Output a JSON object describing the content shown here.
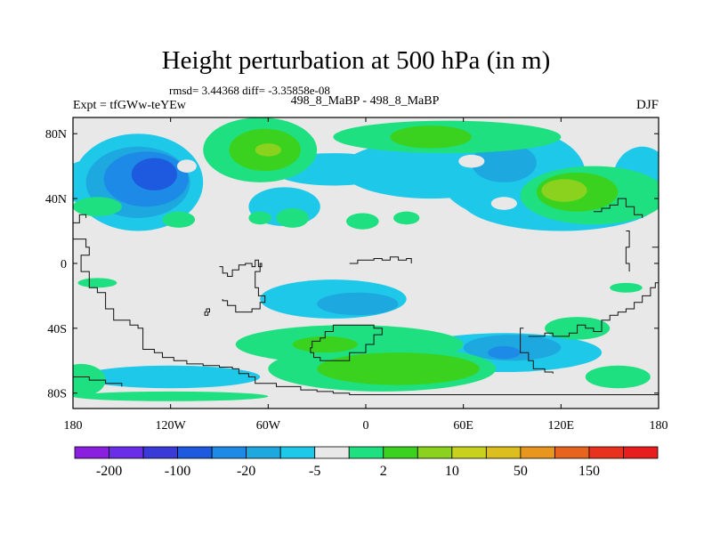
{
  "header": {
    "title": "Height perturbation at 500 hPa (in m)",
    "stats": "rmsd= 3.44368 diff= -3.35858e-08",
    "left_label": "Expt = tfGWw-teYEw",
    "center_label": "498_8_MaBP - 498_8_MaBP",
    "right_label": "DJF"
  },
  "axes": {
    "lon_ticks": [
      {
        "lon": -180,
        "label": "180"
      },
      {
        "lon": -120,
        "label": "120W"
      },
      {
        "lon": -60,
        "label": "60W"
      },
      {
        "lon": 0,
        "label": "0"
      },
      {
        "lon": 60,
        "label": "60E"
      },
      {
        "lon": 120,
        "label": "120E"
      },
      {
        "lon": 180,
        "label": "180"
      }
    ],
    "lat_ticks": [
      {
        "lat": 80,
        "label": "80N"
      },
      {
        "lat": 40,
        "label": "40N"
      },
      {
        "lat": 0,
        "label": "0"
      },
      {
        "lat": -40,
        "label": "40S"
      },
      {
        "lat": -80,
        "label": "80S"
      }
    ]
  },
  "colorbar": {
    "colors": [
      "#8a1fe0",
      "#6a2ee8",
      "#3a3ad8",
      "#1e5ae0",
      "#1e8ae8",
      "#1ea8e0",
      "#1ec8e8",
      "#e8e8e8",
      "#1ee080",
      "#3ad21e",
      "#8ad21e",
      "#c8d21e",
      "#dcbe1e",
      "#e8961e",
      "#e8641e",
      "#e8321e",
      "#e81e1e"
    ],
    "labels": [
      {
        "after_box": 1,
        "text": "-200"
      },
      {
        "after_box": 3,
        "text": "-100"
      },
      {
        "after_box": 5,
        "text": "-20"
      },
      {
        "after_box": 7,
        "text": "-5"
      },
      {
        "after_box": 9,
        "text": "2"
      },
      {
        "after_box": 11,
        "text": "10"
      },
      {
        "after_box": 13,
        "text": "50"
      },
      {
        "after_box": 15,
        "text": "150"
      }
    ]
  },
  "map": {
    "background": "#e8e8e8",
    "zones": [
      {
        "level": "-5",
        "color": "#1ec8e8",
        "shapes": [
          {
            "lon": -162,
            "lat": 50,
            "rx": 28,
            "ry": 15
          },
          {
            "lon": -140,
            "lat": 50,
            "rx": 40,
            "ry": 30
          },
          {
            "lon": -50,
            "lat": 35,
            "rx": 22,
            "ry": 12
          },
          {
            "lon": -20,
            "lat": 58,
            "rx": 38,
            "ry": 10
          },
          {
            "lon": 40,
            "lat": 58,
            "rx": 55,
            "ry": 18
          },
          {
            "lon": 90,
            "lat": 55,
            "rx": 45,
            "ry": 28
          },
          {
            "lon": 120,
            "lat": 40,
            "rx": 62,
            "ry": 20
          },
          {
            "lon": 170,
            "lat": 52,
            "rx": 18,
            "ry": 20
          },
          {
            "lon": -20,
            "lat": -22,
            "rx": 45,
            "ry": 12
          },
          {
            "lon": 85,
            "lat": -55,
            "rx": 60,
            "ry": 12
          },
          {
            "lon": -120,
            "lat": -70,
            "rx": 55,
            "ry": 7
          },
          {
            "lon": 40,
            "lat": -70,
            "rx": 15,
            "ry": 7
          }
        ]
      },
      {
        "level": "-20",
        "color": "#1ea8e0",
        "shapes": [
          {
            "lon": -140,
            "lat": 50,
            "rx": 32,
            "ry": 22
          },
          {
            "lon": 85,
            "lat": 62,
            "rx": 20,
            "ry": 12
          },
          {
            "lon": 90,
            "lat": -52,
            "rx": 30,
            "ry": 8
          },
          {
            "lon": -5,
            "lat": -25,
            "rx": 25,
            "ry": 7
          }
        ]
      },
      {
        "level": "-100",
        "color": "#1e8ae8",
        "shapes": [
          {
            "lon": -135,
            "lat": 52,
            "rx": 26,
            "ry": 17
          },
          {
            "lon": 85,
            "lat": -55,
            "rx": 10,
            "ry": 4
          }
        ]
      },
      {
        "level": "-200",
        "color": "#1e5ae0",
        "shapes": [
          {
            "lon": -130,
            "lat": 55,
            "rx": 14,
            "ry": 10
          }
        ]
      },
      {
        "level": "2",
        "color": "#1ee080",
        "shapes": [
          {
            "lon": -65,
            "lat": 70,
            "rx": 35,
            "ry": 20
          },
          {
            "lon": 50,
            "lat": 78,
            "rx": 70,
            "ry": 10
          },
          {
            "lon": 140,
            "lat": 42,
            "rx": 45,
            "ry": 18
          },
          {
            "lon": -165,
            "lat": 35,
            "rx": 15,
            "ry": 6
          },
          {
            "lon": -115,
            "lat": 27,
            "rx": 10,
            "ry": 5
          },
          {
            "lon": -65,
            "lat": 28,
            "rx": 7,
            "ry": 4
          },
          {
            "lon": -45,
            "lat": 28,
            "rx": 10,
            "ry": 6
          },
          {
            "lon": -2,
            "lat": 26,
            "rx": 10,
            "ry": 5
          },
          {
            "lon": 25,
            "lat": 28,
            "rx": 8,
            "ry": 4
          },
          {
            "lon": -10,
            "lat": -50,
            "rx": 70,
            "ry": 12
          },
          {
            "lon": 10,
            "lat": -65,
            "rx": 70,
            "ry": 14
          },
          {
            "lon": 130,
            "lat": -40,
            "rx": 20,
            "ry": 7
          },
          {
            "lon": -175,
            "lat": -72,
            "rx": 15,
            "ry": 10
          },
          {
            "lon": -120,
            "lat": -82,
            "rx": 60,
            "ry": 3
          },
          {
            "lon": 155,
            "lat": -70,
            "rx": 20,
            "ry": 7
          },
          {
            "lon": -165,
            "lat": -12,
            "rx": 12,
            "ry": 3
          },
          {
            "lon": 160,
            "lat": -15,
            "rx": 10,
            "ry": 3
          }
        ]
      },
      {
        "level": "10",
        "color": "#3ad21e",
        "shapes": [
          {
            "lon": -62,
            "lat": 70,
            "rx": 22,
            "ry": 13
          },
          {
            "lon": 40,
            "lat": 78,
            "rx": 25,
            "ry": 7
          },
          {
            "lon": 130,
            "lat": 44,
            "rx": 25,
            "ry": 12
          },
          {
            "lon": 20,
            "lat": -65,
            "rx": 50,
            "ry": 10
          },
          {
            "lon": -25,
            "lat": -50,
            "rx": 20,
            "ry": 5
          }
        ]
      },
      {
        "level": "50",
        "color": "#8ad21e",
        "shapes": [
          {
            "lon": -60,
            "lat": 70,
            "rx": 8,
            "ry": 4
          },
          {
            "lon": 122,
            "lat": 45,
            "rx": 14,
            "ry": 7
          }
        ]
      }
    ],
    "holes": [
      {
        "lon": 65,
        "lat": 63,
        "rx": 8,
        "ry": 4
      },
      {
        "lon": 85,
        "lat": 37,
        "rx": 8,
        "ry": 4
      },
      {
        "lon": -110,
        "lat": 60,
        "rx": 6,
        "ry": 4
      }
    ],
    "coastlines": [
      [
        [
          -180,
          15
        ],
        [
          -172,
          10
        ],
        [
          -170,
          5
        ],
        [
          -175,
          -5
        ],
        [
          -170,
          -15
        ],
        [
          -165,
          -18
        ],
        [
          -160,
          -28
        ],
        [
          -155,
          -35
        ],
        [
          -145,
          -38
        ],
        [
          -140,
          -40
        ],
        [
          -137,
          -40
        ],
        [
          -137,
          -53
        ],
        [
          -130,
          -55
        ],
        [
          -125,
          -58
        ],
        [
          -118,
          -60
        ],
        [
          -110,
          -62
        ],
        [
          -100,
          -63
        ],
        [
          -90,
          -64
        ],
        [
          -82,
          -65
        ],
        [
          -78,
          -68
        ],
        [
          -72,
          -70
        ],
        [
          -68,
          -74
        ],
        [
          -55,
          -76
        ],
        [
          -45,
          -76
        ],
        [
          -40,
          -78
        ],
        [
          -30,
          -79
        ],
        [
          -20,
          -80
        ],
        [
          -10,
          -81
        ],
        [
          0,
          -81
        ],
        [
          20,
          -81
        ],
        [
          40,
          -81
        ],
        [
          60,
          -81
        ],
        [
          80,
          -81
        ],
        [
          100,
          -81
        ],
        [
          120,
          -81
        ],
        [
          140,
          -81
        ],
        [
          160,
          -81
        ],
        [
          180,
          -81
        ]
      ],
      [
        [
          -90,
          -2
        ],
        [
          -88,
          -6
        ],
        [
          -85,
          -8
        ],
        [
          -82,
          -4
        ],
        [
          -78,
          -1
        ],
        [
          -74,
          0
        ],
        [
          -70,
          -2
        ],
        [
          -68,
          2
        ],
        [
          -66,
          -2
        ],
        [
          -64,
          0
        ],
        [
          -65,
          -5
        ],
        [
          -68,
          -15
        ],
        [
          -66,
          -20
        ],
        [
          -62,
          -24
        ],
        [
          -65,
          -28
        ],
        [
          -70,
          -30
        ],
        [
          -75,
          -30
        ],
        [
          -80,
          -26
        ],
        [
          -85,
          -23
        ],
        [
          -88,
          -22
        ]
      ],
      [
        [
          -10,
          0
        ],
        [
          -5,
          2
        ],
        [
          5,
          3
        ],
        [
          10,
          2
        ],
        [
          15,
          4
        ],
        [
          20,
          2
        ],
        [
          25,
          3
        ],
        [
          28,
          0
        ]
      ],
      [
        [
          -20,
          -38
        ],
        [
          -10,
          -38
        ],
        [
          5,
          -40
        ],
        [
          10,
          -44
        ],
        [
          5,
          -50
        ],
        [
          0,
          -55
        ],
        [
          -10,
          -60
        ],
        [
          -18,
          -60
        ],
        [
          -28,
          -58
        ],
        [
          -32,
          -55
        ],
        [
          -34,
          -52
        ],
        [
          -33,
          -48
        ],
        [
          -28,
          -46
        ],
        [
          -25,
          -42
        ],
        [
          -20,
          -38
        ]
      ],
      [
        [
          100,
          -45
        ],
        [
          110,
          -43
        ],
        [
          115,
          -45
        ],
        [
          125,
          -43
        ],
        [
          130,
          -38
        ],
        [
          135,
          -40
        ],
        [
          140,
          -42
        ],
        [
          145,
          -35
        ],
        [
          150,
          -32
        ],
        [
          155,
          -30
        ],
        [
          160,
          -28
        ],
        [
          165,
          -24
        ],
        [
          170,
          -20
        ],
        [
          175,
          -15
        ],
        [
          178,
          -12
        ],
        [
          180,
          -12
        ]
      ],
      [
        [
          97,
          -40
        ],
        [
          95,
          -55
        ],
        [
          100,
          -60
        ],
        [
          103,
          -65
        ],
        [
          110,
          -67
        ],
        [
          115,
          -68
        ]
      ],
      [
        [
          140,
          32
        ],
        [
          145,
          34
        ],
        [
          150,
          36
        ],
        [
          155,
          40
        ],
        [
          160,
          35
        ],
        [
          165,
          30
        ],
        [
          170,
          28
        ]
      ],
      [
        [
          160,
          20
        ],
        [
          162,
          10
        ],
        [
          160,
          0
        ],
        [
          162,
          -5
        ]
      ],
      [
        [
          176,
          10
        ],
        [
          180,
          15
        ]
      ],
      [
        [
          -180,
          25
        ],
        [
          -176,
          30
        ],
        [
          -172,
          28
        ]
      ],
      [
        [
          -180,
          -70
        ],
        [
          -170,
          -72
        ],
        [
          -160,
          -74
        ],
        [
          -150,
          -76
        ]
      ],
      [
        [
          -98,
          -28
        ],
        [
          -96,
          -30
        ],
        [
          -97,
          -32
        ],
        [
          -99,
          -30
        ],
        [
          -98,
          -28
        ]
      ]
    ]
  }
}
